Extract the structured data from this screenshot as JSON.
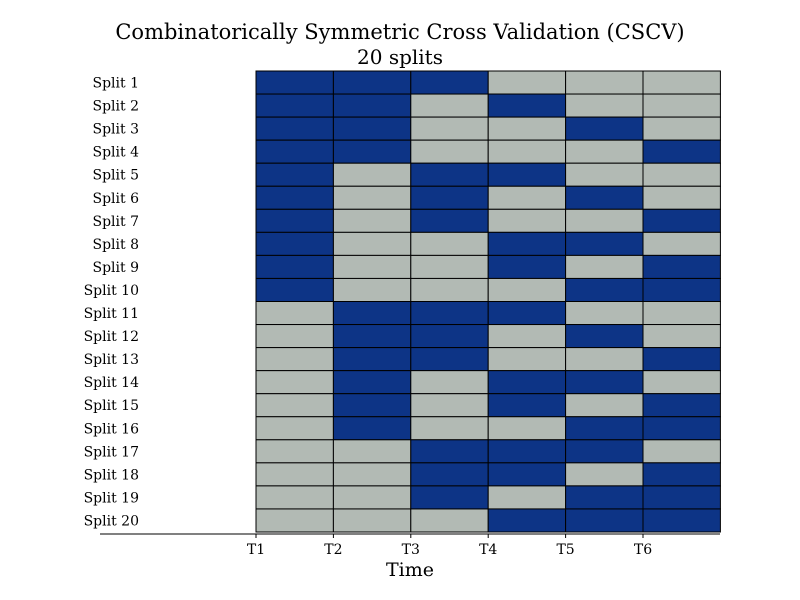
{
  "chart_data": {
    "type": "heatmap",
    "title": "Combinatorically Symmetric Cross Validation (CSCV)",
    "subtitle": "20 splits",
    "xlabel": "Time",
    "ylabel": "",
    "x_ticks": [
      "T1",
      "T2",
      "T3",
      "T4",
      "T5",
      "T6"
    ],
    "grid": false,
    "colors": {
      "selected": "#0d3486",
      "unselected": "#b2bab4",
      "edge": "#000000"
    },
    "rows": [
      {
        "label": "Split 1",
        "blocks": [
          1,
          1,
          1,
          0,
          0,
          0
        ]
      },
      {
        "label": "Split 2",
        "blocks": [
          1,
          1,
          0,
          1,
          0,
          0
        ]
      },
      {
        "label": "Split 3",
        "blocks": [
          1,
          1,
          0,
          0,
          1,
          0
        ]
      },
      {
        "label": "Split 4",
        "blocks": [
          1,
          1,
          0,
          0,
          0,
          1
        ]
      },
      {
        "label": "Split 5",
        "blocks": [
          1,
          0,
          1,
          1,
          0,
          0
        ]
      },
      {
        "label": "Split 6",
        "blocks": [
          1,
          0,
          1,
          0,
          1,
          0
        ]
      },
      {
        "label": "Split 7",
        "blocks": [
          1,
          0,
          1,
          0,
          0,
          1
        ]
      },
      {
        "label": "Split 8",
        "blocks": [
          1,
          0,
          0,
          1,
          1,
          0
        ]
      },
      {
        "label": "Split 9",
        "blocks": [
          1,
          0,
          0,
          1,
          0,
          1
        ]
      },
      {
        "label": "Split 10",
        "blocks": [
          1,
          0,
          0,
          0,
          1,
          1
        ]
      },
      {
        "label": "Split 11",
        "blocks": [
          0,
          1,
          1,
          1,
          0,
          0
        ]
      },
      {
        "label": "Split 12",
        "blocks": [
          0,
          1,
          1,
          0,
          1,
          0
        ]
      },
      {
        "label": "Split 13",
        "blocks": [
          0,
          1,
          1,
          0,
          0,
          1
        ]
      },
      {
        "label": "Split 14",
        "blocks": [
          0,
          1,
          0,
          1,
          1,
          0
        ]
      },
      {
        "label": "Split 15",
        "blocks": [
          0,
          1,
          0,
          1,
          0,
          1
        ]
      },
      {
        "label": "Split 16",
        "blocks": [
          0,
          1,
          0,
          0,
          1,
          1
        ]
      },
      {
        "label": "Split 17",
        "blocks": [
          0,
          0,
          1,
          1,
          1,
          0
        ]
      },
      {
        "label": "Split 18",
        "blocks": [
          0,
          0,
          1,
          1,
          0,
          1
        ]
      },
      {
        "label": "Split 19",
        "blocks": [
          0,
          0,
          1,
          0,
          1,
          1
        ]
      },
      {
        "label": "Split 20",
        "blocks": [
          0,
          0,
          0,
          1,
          1,
          1
        ]
      }
    ]
  }
}
